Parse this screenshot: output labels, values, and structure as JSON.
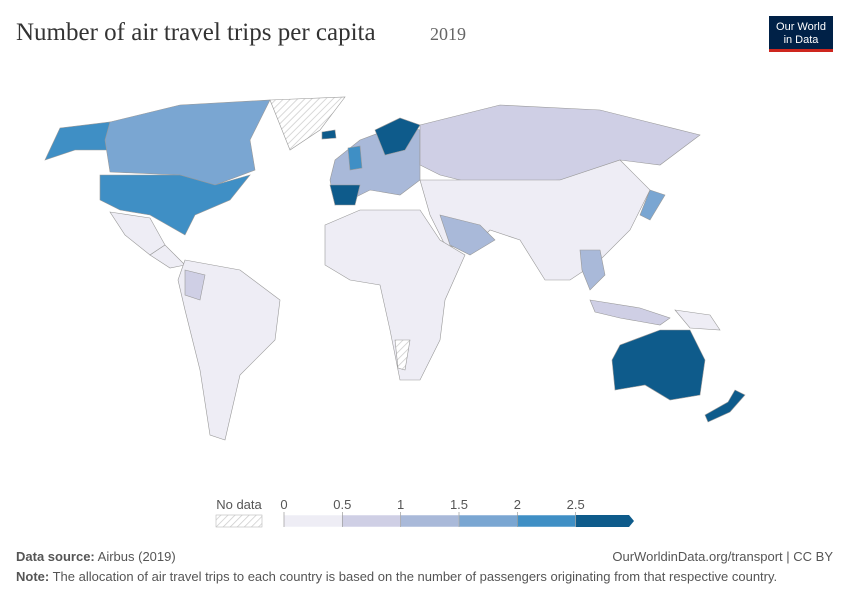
{
  "header": {
    "title": "Number of air travel trips per capita",
    "year": "2019"
  },
  "logo": {
    "line1": "Our World",
    "line2": "in Data"
  },
  "legend": {
    "no_data": "No data",
    "ticks": [
      0,
      0.5,
      1,
      1.5,
      2,
      2.5
    ],
    "colors": [
      "#eeedf5",
      "#cfcfe5",
      "#a9b9d9",
      "#7aa6d2",
      "#3f8fc5",
      "#0e5b8b"
    ]
  },
  "footer": {
    "source_label": "Data source:",
    "source": "Airbus (2019)",
    "url": "OurWorldinData.org/transport | CC BY",
    "note_label": "Note:",
    "note": "The allocation of air travel trips to each country is based on the number of passengers originating from that respective country."
  }
}
